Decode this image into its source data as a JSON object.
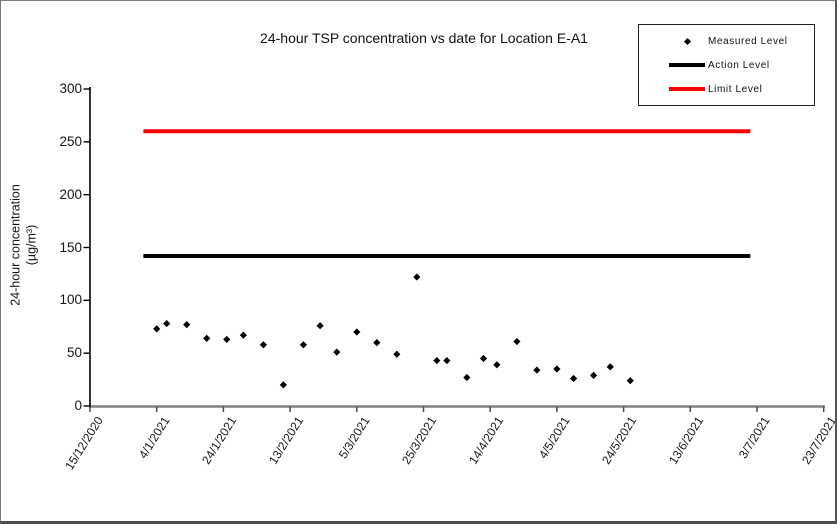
{
  "title": "24-hour TSP concentration vs date for Location E-A1",
  "y_axis": {
    "label_line1": "24-hour concentration",
    "label_line2": "(µg/m³)",
    "ticks": [
      0,
      50,
      100,
      150,
      200,
      250,
      300
    ],
    "min": 0,
    "max": 300
  },
  "x_axis": {
    "tick_labels": [
      "15/12/2020",
      "4/1/2021",
      "24/1/2021",
      "13/2/2021",
      "5/3/2021",
      "25/3/2021",
      "14/4/2021",
      "4/5/2021",
      "24/5/2021",
      "13/6/2021",
      "3/7/2021",
      "23/7/2021"
    ],
    "tick_interval_days": 20
  },
  "legend": {
    "position": "top-right",
    "items": [
      {
        "label": "Measured Level",
        "symbol": "diamond",
        "color": "#000000"
      },
      {
        "label": "Action Level",
        "symbol": "line",
        "color": "#000000"
      },
      {
        "label": "Limit Level",
        "symbol": "line",
        "color": "#ff0000"
      }
    ]
  },
  "chart_data": {
    "type": "scatter",
    "title": "24-hour TSP concentration vs date for Location E-A1",
    "xlabel": "",
    "ylabel": "24-hour concentration (µg/m³)",
    "ylim": [
      0,
      300
    ],
    "grid": false,
    "x_tick_labels": [
      "15/12/2020",
      "4/1/2021",
      "24/1/2021",
      "13/2/2021",
      "5/3/2021",
      "25/3/2021",
      "14/4/2021",
      "4/5/2021",
      "24/5/2021",
      "13/6/2021",
      "3/7/2021",
      "23/7/2021"
    ],
    "series": [
      {
        "name": "Measured Level",
        "type": "scatter",
        "marker": "diamond",
        "color": "#000000",
        "points": [
          {
            "date": "4/1/2021",
            "value": 73
          },
          {
            "date": "7/1/2021",
            "value": 78
          },
          {
            "date": "13/1/2021",
            "value": 77
          },
          {
            "date": "19/1/2021",
            "value": 64
          },
          {
            "date": "25/1/2021",
            "value": 63
          },
          {
            "date": "30/1/2021",
            "value": 67
          },
          {
            "date": "5/2/2021",
            "value": 58
          },
          {
            "date": "11/2/2021",
            "value": 20
          },
          {
            "date": "17/2/2021",
            "value": 58
          },
          {
            "date": "22/2/2021",
            "value": 76
          },
          {
            "date": "27/2/2021",
            "value": 51
          },
          {
            "date": "5/3/2021",
            "value": 70
          },
          {
            "date": "11/3/2021",
            "value": 60
          },
          {
            "date": "17/3/2021",
            "value": 49
          },
          {
            "date": "23/3/2021",
            "value": 122
          },
          {
            "date": "29/3/2021",
            "value": 43
          },
          {
            "date": "1/4/2021",
            "value": 43
          },
          {
            "date": "7/4/2021",
            "value": 27
          },
          {
            "date": "12/4/2021",
            "value": 45
          },
          {
            "date": "16/4/2021",
            "value": 39
          },
          {
            "date": "22/4/2021",
            "value": 61
          },
          {
            "date": "28/4/2021",
            "value": 34
          },
          {
            "date": "4/5/2021",
            "value": 35
          },
          {
            "date": "9/5/2021",
            "value": 26
          },
          {
            "date": "15/5/2021",
            "value": 29
          },
          {
            "date": "20/5/2021",
            "value": 37
          },
          {
            "date": "26/5/2021",
            "value": 24
          }
        ]
      },
      {
        "name": "Action Level",
        "type": "line",
        "color": "#000000",
        "value": 142,
        "start": "31/12/2020",
        "end": "1/7/2021"
      },
      {
        "name": "Limit Level",
        "type": "line",
        "color": "#ff0000",
        "value": 260,
        "start": "31/12/2020",
        "end": "1/7/2021"
      }
    ]
  }
}
